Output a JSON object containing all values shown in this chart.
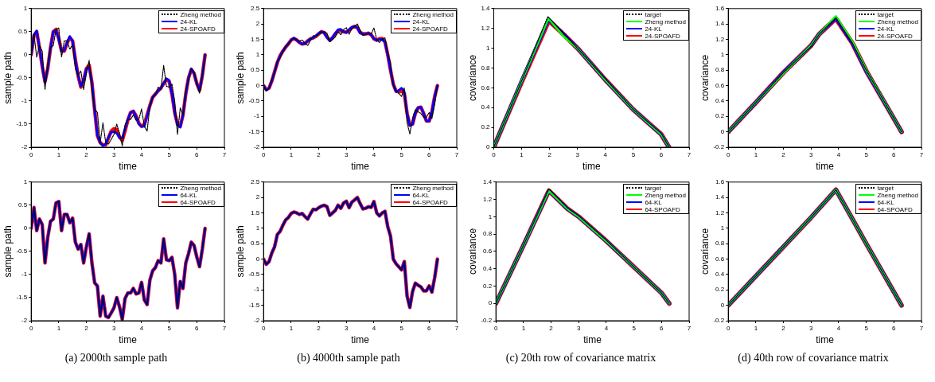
{
  "chart_data": [
    {
      "type": "line",
      "xlabel": "time",
      "ylabel": "sample path",
      "xlim": [
        0,
        7
      ],
      "xticks": [
        0,
        1,
        2,
        3,
        4,
        5,
        6,
        7
      ],
      "ylim": [
        -2,
        1
      ],
      "yticks": [
        -2,
        -1.5,
        -1,
        -0.5,
        0,
        0.5,
        1
      ],
      "legend": "top right",
      "x": [
        0,
        0.1,
        0.2,
        0.3,
        0.4,
        0.5,
        0.6,
        0.7,
        0.8,
        0.9,
        1,
        1.1,
        1.2,
        1.3,
        1.4,
        1.5,
        1.6,
        1.7,
        1.8,
        1.9,
        2,
        2.1,
        2.2,
        2.3,
        2.4,
        2.5,
        2.6,
        2.7,
        2.8,
        2.9,
        3,
        3.1,
        3.2,
        3.3,
        3.4,
        3.5,
        3.6,
        3.7,
        3.8,
        3.9,
        4,
        4.1,
        4.2,
        4.3,
        4.4,
        4.5,
        4.6,
        4.7,
        4.8,
        4.9,
        5,
        5.1,
        5.2,
        5.3,
        5.4,
        5.5,
        5.6,
        5.7,
        5.8,
        5.9,
        6,
        6.1,
        6.2,
        6.3
      ],
      "series": [
        {
          "name": "Zheng method",
          "color": "#000000",
          "line_style": "dotted",
          "values": [
            0,
            0.45,
            -0.05,
            0.2,
            0.08,
            -0.75,
            -0.2,
            0.15,
            0.2,
            0.55,
            0.58,
            -0.05,
            0.3,
            0.3,
            0.12,
            0.22,
            -0.3,
            -0.45,
            -0.35,
            -0.75,
            -0.4,
            -0.12,
            -0.75,
            -1.18,
            -1.25,
            -1.9,
            -1.47,
            -1.9,
            -1.93,
            -1.83,
            -1.72,
            -1.5,
            -1.7,
            -1.97,
            -1.52,
            -1.4,
            -1.4,
            -1.3,
            -1.42,
            -1.4,
            -1.17,
            -1.55,
            -1.65,
            -1.12,
            -0.92,
            -0.85,
            -0.7,
            -0.75,
            -0.23,
            -0.68,
            -0.7,
            -0.63,
            -1,
            -1.72,
            -1.15,
            -1.3,
            -0.75,
            -0.55,
            -0.3,
            -0.37,
            -0.62,
            -0.83,
            -0.45,
            0
          ]
        },
        {
          "name": "24-KL",
          "color": "#0000ff",
          "values": [
            0,
            0.43,
            0.52,
            0.15,
            -0.25,
            -0.6,
            -0.3,
            0.15,
            0.5,
            0.53,
            0.33,
            0.08,
            0.1,
            0.27,
            0.4,
            0.3,
            -0.1,
            -0.45,
            -0.68,
            -0.55,
            -0.3,
            -0.27,
            -0.6,
            -1.2,
            -1.75,
            -1.9,
            -1.97,
            -1.93,
            -1.78,
            -1.67,
            -1.67,
            -1.7,
            -1.8,
            -1.8,
            -1.6,
            -1.4,
            -1.25,
            -1.22,
            -1.33,
            -1.5,
            -1.55,
            -1.55,
            -1.33,
            -1.1,
            -0.92,
            -0.85,
            -0.78,
            -0.72,
            -0.62,
            -0.52,
            -0.55,
            -0.85,
            -1.25,
            -1.52,
            -1.57,
            -1.3,
            -0.85,
            -0.5,
            -0.3,
            -0.4,
            -0.62,
            -0.77,
            -0.45,
            0
          ]
        },
        {
          "name": "24-SPOAFD",
          "color": "#ff0000",
          "values": [
            0,
            0.42,
            0.5,
            0.15,
            -0.25,
            -0.58,
            -0.3,
            0.15,
            0.5,
            0.55,
            0.35,
            0.08,
            0.08,
            0.25,
            0.37,
            0.3,
            -0.1,
            -0.45,
            -0.7,
            -0.55,
            -0.3,
            -0.22,
            -0.6,
            -1.2,
            -1.75,
            -1.9,
            -1.95,
            -1.95,
            -1.8,
            -1.65,
            -1.6,
            -1.62,
            -1.78,
            -1.85,
            -1.65,
            -1.42,
            -1.25,
            -1.22,
            -1.32,
            -1.48,
            -1.55,
            -1.5,
            -1.3,
            -1.1,
            -0.92,
            -0.85,
            -0.78,
            -0.72,
            -0.62,
            -0.53,
            -0.58,
            -0.85,
            -1.25,
            -1.5,
            -1.55,
            -1.3,
            -0.85,
            -0.5,
            -0.32,
            -0.4,
            -0.62,
            -0.77,
            -0.45,
            0
          ]
        }
      ]
    },
    {
      "type": "line",
      "xlabel": "time",
      "ylabel": "sample path",
      "xlim": [
        0,
        7
      ],
      "xticks": [
        0,
        1,
        2,
        3,
        4,
        5,
        6,
        7
      ],
      "ylim": [
        -2,
        2.5
      ],
      "yticks": [
        -2,
        -1.5,
        -1,
        -0.5,
        0,
        0.5,
        1,
        1.5,
        2,
        2.5
      ],
      "legend": "top right",
      "x": [
        0,
        0.1,
        0.2,
        0.3,
        0.4,
        0.5,
        0.6,
        0.7,
        0.8,
        0.9,
        1,
        1.1,
        1.2,
        1.3,
        1.4,
        1.5,
        1.6,
        1.7,
        1.8,
        1.9,
        2,
        2.1,
        2.2,
        2.3,
        2.4,
        2.5,
        2.6,
        2.7,
        2.8,
        2.9,
        3,
        3.1,
        3.2,
        3.3,
        3.4,
        3.5,
        3.6,
        3.7,
        3.8,
        3.9,
        4,
        4.1,
        4.2,
        4.3,
        4.4,
        4.5,
        4.6,
        4.7,
        4.8,
        4.9,
        5,
        5.1,
        5.2,
        5.3,
        5.4,
        5.5,
        5.6,
        5.7,
        5.8,
        5.9,
        6,
        6.1,
        6.2,
        6.3
      ],
      "series": [
        {
          "name": "Zheng method",
          "color": "#000000",
          "line_style": "dotted",
          "values": [
            0,
            -0.17,
            -0.08,
            0.2,
            0.4,
            0.8,
            0.9,
            1.1,
            1.27,
            1.35,
            1.48,
            1.53,
            1.5,
            1.45,
            1.48,
            1.38,
            1.3,
            1.47,
            1.62,
            1.6,
            1.67,
            1.72,
            1.75,
            1.7,
            1.42,
            1.5,
            1.58,
            1.75,
            1.65,
            1.82,
            1.88,
            1.67,
            1.85,
            1.92,
            2,
            1.8,
            1.63,
            1.65,
            1.7,
            1.68,
            1.87,
            1.5,
            1.4,
            1.5,
            1.55,
            1.05,
            0.75,
            0,
            -0.15,
            -0.25,
            -0.35,
            -0.08,
            -1.2,
            -1.57,
            -1.05,
            -0.78,
            -0.85,
            -0.9,
            -1.03,
            -1.03,
            -0.87,
            -1.07,
            -0.6,
            0
          ]
        },
        {
          "name": "24-KL",
          "color": "#0000ff",
          "values": [
            0,
            -0.15,
            -0.08,
            0.15,
            0.45,
            0.75,
            0.97,
            1.12,
            1.25,
            1.37,
            1.48,
            1.55,
            1.48,
            1.4,
            1.35,
            1.37,
            1.45,
            1.52,
            1.55,
            1.62,
            1.7,
            1.75,
            1.7,
            1.55,
            1.47,
            1.57,
            1.7,
            1.82,
            1.83,
            1.75,
            1.72,
            1.82,
            1.9,
            1.93,
            1.87,
            1.7,
            1.67,
            1.68,
            1.7,
            1.65,
            1.52,
            1.47,
            1.5,
            1.5,
            1.4,
            1,
            0.5,
            0.05,
            -0.2,
            -0.15,
            -0.08,
            -0.2,
            -0.9,
            -1.3,
            -1.25,
            -0.9,
            -0.72,
            -0.7,
            -0.9,
            -1.15,
            -1.15,
            -0.85,
            -0.35,
            0
          ]
        },
        {
          "name": "24-SPOAFD",
          "color": "#ff0000",
          "values": [
            0,
            -0.13,
            -0.08,
            0.15,
            0.45,
            0.75,
            0.97,
            1.12,
            1.25,
            1.35,
            1.48,
            1.53,
            1.48,
            1.4,
            1.35,
            1.37,
            1.45,
            1.52,
            1.55,
            1.6,
            1.68,
            1.75,
            1.72,
            1.58,
            1.47,
            1.55,
            1.68,
            1.78,
            1.78,
            1.75,
            1.73,
            1.8,
            1.88,
            1.92,
            1.88,
            1.73,
            1.68,
            1.68,
            1.7,
            1.65,
            1.52,
            1.47,
            1.52,
            1.53,
            1.42,
            1,
            0.5,
            0.05,
            -0.18,
            -0.2,
            -0.18,
            -0.25,
            -0.9,
            -1.28,
            -1.25,
            -0.9,
            -0.72,
            -0.7,
            -0.9,
            -1.15,
            -1.15,
            -0.85,
            -0.35,
            0
          ]
        }
      ]
    },
    {
      "type": "line",
      "xlabel": "time",
      "ylabel": "covariance",
      "xlim": [
        0,
        7
      ],
      "xticks": [
        0,
        1,
        2,
        3,
        4,
        5,
        6,
        7
      ],
      "ylim": [
        0,
        1.4
      ],
      "yticks": [
        0,
        0.2,
        0.4,
        0.6,
        0.8,
        1,
        1.2,
        1.4
      ],
      "legend": "top right",
      "series": [
        {
          "name": "target",
          "color": "#000000",
          "line_style": "dotted",
          "x": [
            0,
            1,
            1.94,
            2.5,
            3,
            4,
            5,
            6,
            6.28
          ],
          "values": [
            0,
            0.67,
            1.32,
            1.15,
            1,
            0.69,
            0.38,
            0.14,
            0
          ]
        },
        {
          "name": "Zheng method",
          "color": "#00ff00",
          "x": [
            0,
            1,
            1.96,
            2.5,
            3,
            4,
            5,
            6,
            6.28
          ],
          "values": [
            0,
            0.67,
            1.3,
            1.12,
            1,
            0.68,
            0.38,
            0.13,
            0
          ]
        },
        {
          "name": "24-KL",
          "color": "#0000ff",
          "x": [
            0,
            1,
            1.96,
            2.5,
            3,
            4,
            5,
            6,
            6.28
          ],
          "values": [
            0,
            0.67,
            1.29,
            1.14,
            1,
            0.68,
            0.38,
            0.13,
            0
          ]
        },
        {
          "name": "24-SPOAFD",
          "color": "#ff0000",
          "x": [
            0,
            1,
            1.97,
            2.5,
            3,
            4,
            5,
            6,
            6.28
          ],
          "values": [
            0,
            0.66,
            1.28,
            1.14,
            1,
            0.68,
            0.38,
            0.13,
            0
          ]
        }
      ]
    },
    {
      "type": "line",
      "xlabel": "time",
      "ylabel": "covariance",
      "xlim": [
        0,
        7
      ],
      "xticks": [
        0,
        1,
        2,
        3,
        4,
        5,
        6,
        7
      ],
      "ylim": [
        -0.2,
        1.6
      ],
      "yticks": [
        -0.2,
        0,
        0.2,
        0.4,
        0.6,
        0.8,
        1,
        1.2,
        1.4,
        1.6
      ],
      "legend": "top right",
      "series": [
        {
          "name": "target",
          "color": "#000000",
          "line_style": "dotted",
          "x": [
            0,
            1,
            2,
            3,
            3.3,
            3.9,
            4.5,
            5,
            6.28
          ],
          "values": [
            0,
            0.38,
            0.77,
            1.11,
            1.27,
            1.48,
            1.15,
            0.8,
            0
          ]
        },
        {
          "name": "Zheng method",
          "color": "#00ff00",
          "x": [
            0,
            1,
            2,
            3,
            3.3,
            3.9,
            4.5,
            5,
            6.28
          ],
          "values": [
            0,
            0.38,
            0.76,
            1.12,
            1.27,
            1.5,
            1.17,
            0.8,
            0
          ]
        },
        {
          "name": "24-KL",
          "color": "#0000ff",
          "x": [
            0,
            1,
            2,
            3,
            3.3,
            3.9,
            4.5,
            5,
            6.28
          ],
          "values": [
            0,
            0.38,
            0.77,
            1.12,
            1.27,
            1.48,
            1.15,
            0.79,
            0
          ]
        },
        {
          "name": "24-SPOAFD",
          "color": "#ff0000",
          "x": [
            0,
            1,
            2,
            3,
            3.3,
            3.9,
            4.5,
            5,
            6.28
          ],
          "values": [
            0,
            0.38,
            0.77,
            1.12,
            1.27,
            1.47,
            1.15,
            0.79,
            0
          ]
        }
      ]
    },
    {
      "type": "line",
      "xlabel": "time",
      "ylabel": "sample path",
      "xlim": [
        0,
        7
      ],
      "xticks": [
        0,
        1,
        2,
        3,
        4,
        5,
        6,
        7
      ],
      "ylim": [
        -2,
        1
      ],
      "yticks": [
        -2,
        -1.5,
        -1,
        -0.5,
        0,
        0.5,
        1
      ],
      "legend": "top right",
      "annotations": [
        "(a)  2000th sample path"
      ],
      "x": [
        0,
        0.1,
        0.2,
        0.3,
        0.4,
        0.5,
        0.6,
        0.7,
        0.8,
        0.9,
        1,
        1.1,
        1.2,
        1.3,
        1.4,
        1.5,
        1.6,
        1.7,
        1.8,
        1.9,
        2,
        2.1,
        2.2,
        2.3,
        2.4,
        2.5,
        2.6,
        2.7,
        2.8,
        2.9,
        3,
        3.1,
        3.2,
        3.3,
        3.4,
        3.5,
        3.6,
        3.7,
        3.8,
        3.9,
        4,
        4.1,
        4.2,
        4.3,
        4.4,
        4.5,
        4.6,
        4.7,
        4.8,
        4.9,
        5,
        5.1,
        5.2,
        5.3,
        5.4,
        5.5,
        5.6,
        5.7,
        5.8,
        5.9,
        6,
        6.1,
        6.2,
        6.3
      ],
      "series": [
        {
          "name": "Zheng method",
          "color": "#000000",
          "line_style": "dotted",
          "values": [
            0,
            0.45,
            -0.05,
            0.2,
            0.08,
            -0.75,
            -0.2,
            0.15,
            0.2,
            0.55,
            0.58,
            -0.05,
            0.3,
            0.3,
            0.12,
            0.22,
            -0.3,
            -0.45,
            -0.35,
            -0.75,
            -0.4,
            -0.12,
            -0.75,
            -1.18,
            -1.25,
            -1.9,
            -1.47,
            -1.9,
            -1.93,
            -1.83,
            -1.72,
            -1.5,
            -1.7,
            -1.97,
            -1.52,
            -1.4,
            -1.4,
            -1.3,
            -1.42,
            -1.4,
            -1.17,
            -1.55,
            -1.65,
            -1.12,
            -0.92,
            -0.85,
            -0.7,
            -0.75,
            -0.23,
            -0.68,
            -0.7,
            -0.63,
            -1,
            -1.72,
            -1.15,
            -1.3,
            -0.75,
            -0.55,
            -0.3,
            -0.37,
            -0.62,
            -0.83,
            -0.45,
            0
          ]
        },
        {
          "name": "64-KL",
          "color": "#0000ff",
          "values": [
            0,
            0.45,
            -0.05,
            0.2,
            0.08,
            -0.75,
            -0.2,
            0.15,
            0.2,
            0.55,
            0.58,
            -0.05,
            0.3,
            0.3,
            0.12,
            0.22,
            -0.3,
            -0.45,
            -0.35,
            -0.75,
            -0.4,
            -0.12,
            -0.75,
            -1.18,
            -1.25,
            -1.9,
            -1.47,
            -1.9,
            -1.93,
            -1.83,
            -1.72,
            -1.5,
            -1.7,
            -1.97,
            -1.52,
            -1.4,
            -1.4,
            -1.3,
            -1.42,
            -1.4,
            -1.17,
            -1.55,
            -1.65,
            -1.12,
            -0.92,
            -0.85,
            -0.7,
            -0.75,
            -0.23,
            -0.68,
            -0.7,
            -0.63,
            -1,
            -1.72,
            -1.15,
            -1.3,
            -0.75,
            -0.55,
            -0.3,
            -0.37,
            -0.62,
            -0.83,
            -0.45,
            0
          ]
        },
        {
          "name": "64-SPOAFD",
          "color": "#ff0000",
          "values": [
            0,
            0.45,
            -0.05,
            0.2,
            0.08,
            -0.75,
            -0.2,
            0.15,
            0.2,
            0.55,
            0.58,
            -0.05,
            0.3,
            0.3,
            0.12,
            0.22,
            -0.3,
            -0.45,
            -0.35,
            -0.75,
            -0.4,
            -0.12,
            -0.75,
            -1.18,
            -1.25,
            -1.9,
            -1.47,
            -1.9,
            -1.93,
            -1.83,
            -1.72,
            -1.5,
            -1.7,
            -1.97,
            -1.52,
            -1.4,
            -1.4,
            -1.3,
            -1.42,
            -1.4,
            -1.17,
            -1.55,
            -1.65,
            -1.12,
            -0.92,
            -0.85,
            -0.7,
            -0.75,
            -0.23,
            -0.68,
            -0.7,
            -0.63,
            -1,
            -1.72,
            -1.15,
            -1.3,
            -0.75,
            -0.55,
            -0.3,
            -0.37,
            -0.62,
            -0.83,
            -0.45,
            0
          ]
        }
      ]
    },
    {
      "type": "line",
      "xlabel": "time",
      "ylabel": "sample path",
      "xlim": [
        0,
        7
      ],
      "xticks": [
        0,
        1,
        2,
        3,
        4,
        5,
        6,
        7
      ],
      "ylim": [
        -2,
        2.5
      ],
      "yticks": [
        -2,
        -1.5,
        -1,
        -0.5,
        0,
        0.5,
        1,
        1.5,
        2,
        2.5
      ],
      "legend": "top right",
      "annotations": [
        "(b)  4000th sample path"
      ],
      "x": [
        0,
        0.1,
        0.2,
        0.3,
        0.4,
        0.5,
        0.6,
        0.7,
        0.8,
        0.9,
        1,
        1.1,
        1.2,
        1.3,
        1.4,
        1.5,
        1.6,
        1.7,
        1.8,
        1.9,
        2,
        2.1,
        2.2,
        2.3,
        2.4,
        2.5,
        2.6,
        2.7,
        2.8,
        2.9,
        3,
        3.1,
        3.2,
        3.3,
        3.4,
        3.5,
        3.6,
        3.7,
        3.8,
        3.9,
        4,
        4.1,
        4.2,
        4.3,
        4.4,
        4.5,
        4.6,
        4.7,
        4.8,
        4.9,
        5,
        5.1,
        5.2,
        5.3,
        5.4,
        5.5,
        5.6,
        5.7,
        5.8,
        5.9,
        6,
        6.1,
        6.2,
        6.3
      ],
      "series": [
        {
          "name": "Zheng method",
          "color": "#000000",
          "line_style": "dotted",
          "values": [
            0,
            -0.17,
            -0.08,
            0.2,
            0.4,
            0.8,
            0.9,
            1.1,
            1.27,
            1.35,
            1.48,
            1.53,
            1.5,
            1.45,
            1.48,
            1.38,
            1.3,
            1.47,
            1.62,
            1.6,
            1.67,
            1.72,
            1.75,
            1.7,
            1.42,
            1.5,
            1.58,
            1.75,
            1.65,
            1.82,
            1.88,
            1.67,
            1.85,
            1.92,
            2,
            1.8,
            1.63,
            1.65,
            1.7,
            1.68,
            1.87,
            1.5,
            1.4,
            1.5,
            1.55,
            1.05,
            0.75,
            0,
            -0.15,
            -0.25,
            -0.35,
            -0.08,
            -1.2,
            -1.57,
            -1.05,
            -0.78,
            -0.85,
            -0.9,
            -1.03,
            -1.03,
            -0.87,
            -1.07,
            -0.6,
            0
          ]
        },
        {
          "name": "64-KL",
          "color": "#0000ff",
          "values": [
            0,
            -0.17,
            -0.08,
            0.2,
            0.4,
            0.8,
            0.9,
            1.1,
            1.27,
            1.35,
            1.48,
            1.53,
            1.5,
            1.45,
            1.48,
            1.38,
            1.3,
            1.47,
            1.62,
            1.6,
            1.67,
            1.72,
            1.75,
            1.7,
            1.42,
            1.5,
            1.58,
            1.75,
            1.65,
            1.82,
            1.88,
            1.67,
            1.85,
            1.92,
            2,
            1.8,
            1.63,
            1.65,
            1.7,
            1.68,
            1.87,
            1.5,
            1.4,
            1.5,
            1.55,
            1.05,
            0.75,
            0,
            -0.15,
            -0.25,
            -0.35,
            -0.08,
            -1.2,
            -1.57,
            -1.05,
            -0.78,
            -0.85,
            -0.9,
            -1.03,
            -1.03,
            -0.87,
            -1.07,
            -0.6,
            0
          ]
        },
        {
          "name": "64-SPOAFD",
          "color": "#ff0000",
          "values": [
            0,
            -0.17,
            -0.08,
            0.2,
            0.4,
            0.8,
            0.9,
            1.1,
            1.27,
            1.35,
            1.48,
            1.53,
            1.5,
            1.45,
            1.48,
            1.38,
            1.3,
            1.47,
            1.62,
            1.6,
            1.67,
            1.72,
            1.75,
            1.7,
            1.42,
            1.5,
            1.58,
            1.75,
            1.65,
            1.82,
            1.88,
            1.67,
            1.85,
            1.92,
            2,
            1.8,
            1.63,
            1.65,
            1.7,
            1.68,
            1.87,
            1.5,
            1.4,
            1.5,
            1.55,
            1.05,
            0.75,
            0,
            -0.15,
            -0.25,
            -0.35,
            -0.08,
            -1.2,
            -1.57,
            -1.05,
            -0.78,
            -0.85,
            -0.9,
            -1.03,
            -1.03,
            -0.87,
            -1.07,
            -0.6,
            0
          ]
        }
      ]
    },
    {
      "type": "line",
      "xlabel": "time",
      "ylabel": "covariance",
      "xlim": [
        0,
        7
      ],
      "xticks": [
        0,
        1,
        2,
        3,
        4,
        5,
        6,
        7
      ],
      "ylim": [
        -0.2,
        1.4
      ],
      "yticks": [
        -0.2,
        0,
        0.2,
        0.4,
        0.6,
        0.8,
        1,
        1.2,
        1.4
      ],
      "legend": "top right",
      "annotations": [
        "(c)  20th row of covariance matrix"
      ],
      "series": [
        {
          "name": "target",
          "color": "#000000",
          "line_style": "dotted",
          "x": [
            0,
            1,
            1.92,
            2.6,
            3,
            4,
            5,
            6,
            6.28
          ],
          "values": [
            0,
            0.67,
            1.32,
            1.1,
            1.01,
            0.73,
            0.42,
            0.12,
            0
          ]
        },
        {
          "name": "Zheng method",
          "color": "#00ff00",
          "x": [
            0,
            1,
            1.92,
            2.6,
            3,
            4,
            5,
            6,
            6.28
          ],
          "values": [
            0,
            0.67,
            1.3,
            1.09,
            1,
            0.72,
            0.42,
            0.12,
            0
          ]
        },
        {
          "name": "64-KL",
          "color": "#0000ff",
          "x": [
            0,
            1,
            1.92,
            2.6,
            3,
            4,
            5,
            6,
            6.28
          ],
          "values": [
            0,
            0.67,
            1.3,
            1.09,
            1,
            0.72,
            0.42,
            0.12,
            0
          ]
        },
        {
          "name": "64-SPOAFD",
          "color": "#ff0000",
          "x": [
            0,
            1,
            1.92,
            2.6,
            3,
            4,
            5,
            6,
            6.28
          ],
          "values": [
            0,
            0.67,
            1.3,
            1.09,
            1,
            0.72,
            0.42,
            0.12,
            0
          ]
        }
      ]
    },
    {
      "type": "line",
      "xlabel": "time",
      "ylabel": "covariance",
      "xlim": [
        0,
        7
      ],
      "xticks": [
        0,
        1,
        2,
        3,
        4,
        5,
        6,
        7
      ],
      "ylim": [
        -0.2,
        1.6
      ],
      "yticks": [
        -0.2,
        0,
        0.2,
        0.4,
        0.6,
        0.8,
        1,
        1.2,
        1.4,
        1.6
      ],
      "legend": "top right",
      "annotations": [
        "(d)  40th row of covariance matrix"
      ],
      "series": [
        {
          "name": "target",
          "color": "#000000",
          "line_style": "dotted",
          "x": [
            0,
            1,
            2,
            3,
            3.9,
            4.5,
            5,
            6.28
          ],
          "values": [
            0,
            0.38,
            0.76,
            1.14,
            1.5,
            1.12,
            0.8,
            0
          ]
        },
        {
          "name": "Zheng method",
          "color": "#00ff00",
          "x": [
            0,
            1,
            2,
            3,
            3.9,
            4.5,
            5,
            6.28
          ],
          "values": [
            0,
            0.38,
            0.76,
            1.14,
            1.5,
            1.12,
            0.8,
            0
          ]
        },
        {
          "name": "64-KL",
          "color": "#0000ff",
          "x": [
            0,
            1,
            2,
            3,
            3.9,
            4.5,
            5,
            6.28
          ],
          "values": [
            0,
            0.38,
            0.76,
            1.14,
            1.5,
            1.12,
            0.8,
            0
          ]
        },
        {
          "name": "64-SPOAFD",
          "color": "#ff0000",
          "x": [
            0,
            1,
            2,
            3,
            3.9,
            4.5,
            5,
            6.28
          ],
          "values": [
            0,
            0.38,
            0.76,
            1.14,
            1.5,
            1.12,
            0.8,
            0
          ]
        }
      ]
    }
  ]
}
